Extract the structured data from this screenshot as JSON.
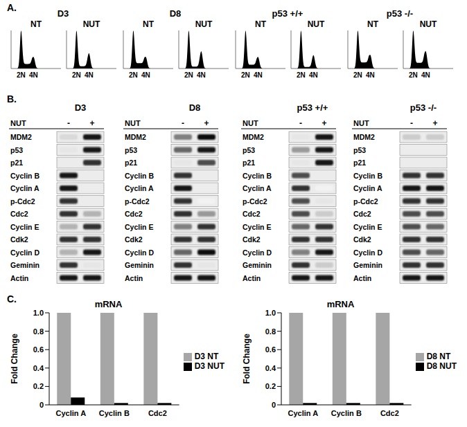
{
  "panels": {
    "A": {
      "label": "A.",
      "x_labels": [
        "2N",
        "4N"
      ],
      "groups": [
        {
          "name": "D3",
          "samples": [
            {
              "name": "NT",
              "g1": 1.0,
              "s": 0.12,
              "g2": 0.3
            },
            {
              "name": "NUT",
              "g1": 1.0,
              "s": 0.06,
              "g2": 0.4
            }
          ]
        },
        {
          "name": "D8",
          "samples": [
            {
              "name": "NT",
              "g1": 1.0,
              "s": 0.14,
              "g2": 0.3
            },
            {
              "name": "NUT",
              "g1": 1.0,
              "s": 0.05,
              "g2": 0.45
            }
          ]
        },
        {
          "name": "p53 +/+",
          "samples": [
            {
              "name": "NT",
              "g1": 1.0,
              "s": 0.1,
              "g2": 0.3
            },
            {
              "name": "NUT",
              "g1": 1.0,
              "s": 0.04,
              "g2": 0.35
            }
          ]
        },
        {
          "name": "p53 -/-",
          "samples": [
            {
              "name": "NT",
              "g1": 1.0,
              "s": 0.16,
              "g2": 0.35
            },
            {
              "name": "NUT",
              "g1": 1.0,
              "s": 0.15,
              "g2": 0.45
            }
          ]
        }
      ]
    },
    "B": {
      "label": "B.",
      "treatment": "NUT",
      "lanes": [
        "-",
        "+"
      ],
      "proteins": [
        "MDM2",
        "p53",
        "p21",
        "Cyclin B",
        "Cyclin A",
        "p-Cdc2",
        "Cdc2",
        "Cyclin E",
        "Cdk2",
        "Cyclin D",
        "Geminin",
        "Actin"
      ],
      "blots": [
        {
          "name": "D3",
          "bands": [
            [
              0.15,
              0.9
            ],
            [
              0.1,
              0.9
            ],
            [
              0,
              0.8
            ],
            [
              0.9,
              0
            ],
            [
              0.9,
              0
            ],
            [
              0.8,
              0
            ],
            [
              0.8,
              0.3
            ],
            [
              0.3,
              0.8
            ],
            [
              0.8,
              0.8
            ],
            [
              0.3,
              0.9
            ],
            [
              0.8,
              0.1
            ],
            [
              0.9,
              0.9
            ]
          ]
        },
        {
          "name": "D8",
          "bands": [
            [
              0.5,
              0.95
            ],
            [
              0.6,
              0.9
            ],
            [
              0.1,
              0.7
            ],
            [
              0.8,
              0
            ],
            [
              0.9,
              0
            ],
            [
              0.8,
              0.05
            ],
            [
              0.8,
              0.4
            ],
            [
              0.5,
              0.8
            ],
            [
              0.8,
              0.8
            ],
            [
              0.6,
              0.95
            ],
            [
              0.8,
              0.1
            ],
            [
              0.9,
              0.9
            ]
          ]
        },
        {
          "name": "p53 +/+",
          "bands": [
            [
              0.1,
              0.9
            ],
            [
              0.4,
              0.9
            ],
            [
              0.1,
              0.9
            ],
            [
              0.7,
              0
            ],
            [
              0.8,
              0.05
            ],
            [
              0.7,
              0.1
            ],
            [
              0.7,
              0.2
            ],
            [
              0.6,
              0.8
            ],
            [
              0.8,
              0.8
            ],
            [
              0.5,
              0.9
            ],
            [
              0.8,
              0.2
            ],
            [
              0.9,
              0.9
            ]
          ]
        },
        {
          "name": "p53 -/-",
          "bands": [
            [
              0.2,
              0.2
            ],
            [
              0,
              0
            ],
            [
              0,
              0
            ],
            [
              0.8,
              0.8
            ],
            [
              0.9,
              0.9
            ],
            [
              0.8,
              0.8
            ],
            [
              0.7,
              0.7
            ],
            [
              0.7,
              0.6
            ],
            [
              0.8,
              0.8
            ],
            [
              0.7,
              0.6
            ],
            [
              0.8,
              0.8
            ],
            [
              0.9,
              0.9
            ]
          ]
        }
      ]
    },
    "C": {
      "label": "C."
    }
  },
  "chart_data": [
    {
      "type": "bar",
      "title": "mRNA",
      "y_label": "Fold Change",
      "categories": [
        "Cyclin A",
        "Cyclin B",
        "Cdc2"
      ],
      "series": [
        {
          "name": "D3 NT",
          "color": "#a6a6a6",
          "values": [
            1.0,
            1.0,
            1.0
          ]
        },
        {
          "name": "D3 NUT",
          "color": "#000000",
          "values": [
            0.08,
            0.02,
            0.02
          ]
        }
      ],
      "ylim": [
        0,
        1
      ],
      "yticks": [
        0,
        0.2,
        0.4,
        0.6,
        0.8,
        {
          "value": 1,
          "label": "1.0"
        }
      ],
      "legend": "right",
      "grid": false
    },
    {
      "type": "bar",
      "title": "mRNA",
      "y_label": "Fold Change",
      "categories": [
        "Cyclin A",
        "Cyclin B",
        "Cdc2"
      ],
      "series": [
        {
          "name": "D8 NT",
          "color": "#a6a6a6",
          "values": [
            1.0,
            1.0,
            1.0
          ]
        },
        {
          "name": "D8 NUT",
          "color": "#000000",
          "values": [
            0.02,
            0.02,
            0.02
          ]
        }
      ],
      "ylim": [
        0,
        1
      ],
      "yticks": [
        0,
        0.2,
        0.4,
        0.6,
        0.8,
        {
          "value": 1,
          "label": "1.0"
        }
      ],
      "legend": "right",
      "grid": false
    }
  ]
}
